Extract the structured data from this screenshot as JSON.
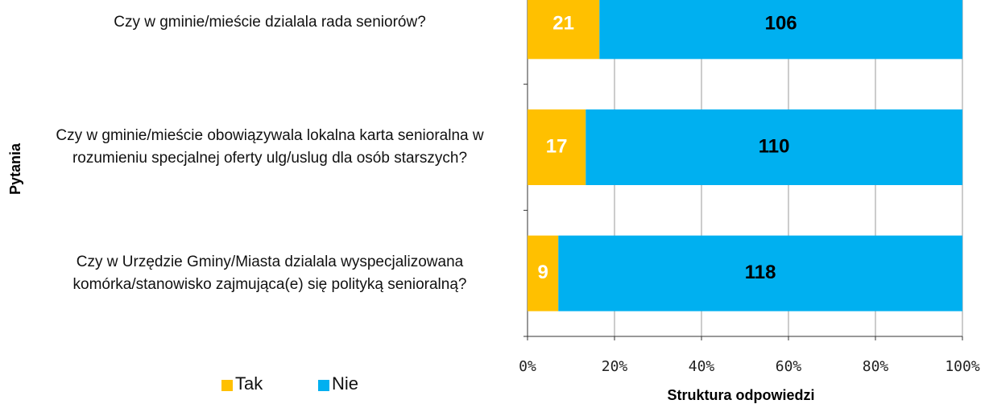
{
  "chart_data": {
    "type": "bar",
    "orientation": "horizontal",
    "stack": "percent",
    "categories": [
      "Czy w gminie/mieście dzialala rada seniorów?",
      "Czy w gminie/mieście obowiązywala lokalna karta senioralna w rozumieniu specjalnej oferty ulg/uslug dla osób starszych?",
      "Czy w Urzędzie Gminy/Miasta dzialala wyspecjalizowana komórka/stanowisko zajmująca(e) się polityką senioralną?"
    ],
    "series": [
      {
        "name": "Tak",
        "color": "#ffc000",
        "values": [
          21,
          17,
          9
        ]
      },
      {
        "name": "Nie",
        "color": "#00b0f0",
        "values": [
          106,
          110,
          118
        ]
      }
    ],
    "xlim": [
      0,
      100
    ],
    "xticks": [
      {
        "value": 0,
        "label": "0%"
      },
      {
        "value": 20,
        "label": "20%"
      },
      {
        "value": 40,
        "label": "40%"
      },
      {
        "value": 60,
        "label": "60%"
      },
      {
        "value": 80,
        "label": "80%"
      },
      {
        "value": 100,
        "label": "100%"
      }
    ],
    "xlabel": "Struktura odpowiedzi",
    "ylabel": "Pytania",
    "grid": true,
    "legend": "bottom-left"
  }
}
